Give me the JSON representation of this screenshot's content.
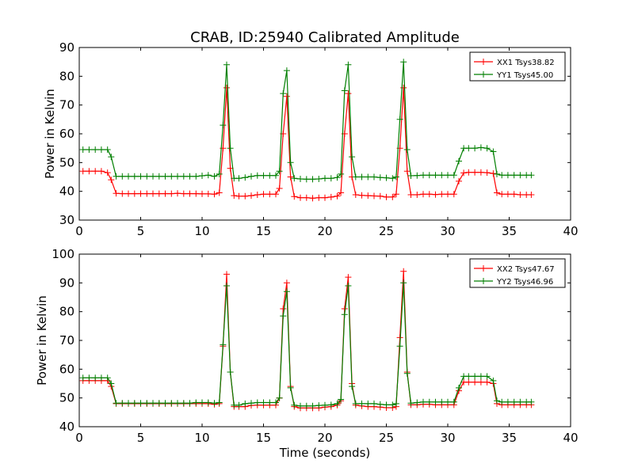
{
  "chart_data": [
    {
      "type": "line",
      "title": "CRAB, ID:25940 Calibrated Amplitude",
      "xlabel": "",
      "ylabel": "Power in Kelvin",
      "xlim": [
        0,
        40
      ],
      "ylim": [
        30,
        90
      ],
      "xticks": [
        "0",
        "5",
        "10",
        "15",
        "20",
        "25",
        "30",
        "35",
        "40"
      ],
      "yticks": [
        "30",
        "40",
        "50",
        "60",
        "70",
        "80",
        "90"
      ],
      "legend_position": "top-right",
      "series": [
        {
          "name": "XX1 Tsys38.82",
          "color": "#ff0000",
          "x": [
            0.3,
            0.8,
            1.3,
            1.8,
            2.3,
            2.6,
            3.0,
            3.5,
            4.0,
            4.5,
            5.0,
            5.5,
            6.0,
            6.5,
            7.0,
            7.5,
            8.0,
            8.5,
            9.0,
            9.5,
            10.0,
            10.5,
            11.0,
            11.4,
            11.7,
            12.0,
            12.3,
            12.6,
            13.0,
            13.5,
            14.0,
            14.5,
            15.0,
            15.5,
            16.0,
            16.3,
            16.6,
            16.9,
            17.2,
            17.5,
            18.0,
            18.5,
            19.0,
            19.5,
            20.0,
            20.5,
            21.0,
            21.3,
            21.6,
            21.9,
            22.2,
            22.5,
            23.0,
            23.5,
            24.0,
            24.5,
            25.0,
            25.5,
            25.8,
            26.1,
            26.4,
            26.7,
            27.0,
            27.5,
            28.0,
            28.5,
            29.0,
            29.5,
            30.0,
            30.5,
            30.9,
            31.3,
            31.7,
            32.2,
            32.7,
            33.2,
            33.7,
            34.0,
            34.4,
            34.9,
            35.4,
            35.9,
            36.4,
            36.8
          ],
          "y": [
            47,
            47,
            47,
            47,
            46.5,
            44,
            39.3,
            39.2,
            39.2,
            39.2,
            39.2,
            39.2,
            39.2,
            39.2,
            39.2,
            39.2,
            39.3,
            39.2,
            39.2,
            39.2,
            39.1,
            39.1,
            39,
            39.5,
            55,
            76,
            48,
            38.5,
            38.3,
            38.3,
            38.5,
            38.8,
            39,
            39,
            39,
            41,
            60,
            73,
            45,
            38.2,
            37.8,
            37.8,
            37.6,
            37.8,
            37.8,
            38,
            38.3,
            39.5,
            60,
            74,
            45,
            38.8,
            38.6,
            38.5,
            38.4,
            38.3,
            38,
            38,
            39,
            55,
            76,
            47,
            38.8,
            38.8,
            39,
            39,
            38.9,
            39,
            39,
            39,
            43.5,
            46.4,
            46.6,
            46.6,
            46.6,
            46.5,
            46.2,
            39.5,
            39,
            39,
            39,
            38.8,
            38.8,
            38.8
          ]
        },
        {
          "name": "YY1 Tsys45.00",
          "color": "#007f00",
          "x": [
            0.3,
            0.8,
            1.3,
            1.8,
            2.3,
            2.6,
            3.0,
            3.5,
            4.0,
            4.5,
            5.0,
            5.5,
            6.0,
            6.5,
            7.0,
            7.5,
            8.0,
            8.5,
            9.0,
            9.5,
            10.0,
            10.5,
            11.0,
            11.4,
            11.7,
            12.0,
            12.3,
            12.6,
            13.0,
            13.5,
            14.0,
            14.5,
            15.0,
            15.5,
            16.0,
            16.3,
            16.6,
            16.9,
            17.2,
            17.5,
            18.0,
            18.5,
            19.0,
            19.5,
            20.0,
            20.5,
            21.0,
            21.3,
            21.6,
            21.9,
            22.2,
            22.5,
            23.0,
            23.5,
            24.0,
            24.5,
            25.0,
            25.5,
            25.8,
            26.1,
            26.4,
            26.7,
            27.0,
            27.5,
            28.0,
            28.5,
            29.0,
            29.5,
            30.0,
            30.5,
            30.9,
            31.3,
            31.7,
            32.2,
            32.7,
            33.2,
            33.7,
            34.0,
            34.4,
            34.9,
            35.4,
            35.9,
            36.4,
            36.8
          ],
          "y": [
            54.5,
            54.5,
            54.5,
            54.5,
            54.5,
            52,
            45.2,
            45.2,
            45.2,
            45.2,
            45.2,
            45.2,
            45.2,
            45.2,
            45.2,
            45.2,
            45.2,
            45.2,
            45.2,
            45.2,
            45.4,
            45.6,
            45.2,
            46,
            63,
            84,
            55,
            44.5,
            44.5,
            44.8,
            45.2,
            45.5,
            45.5,
            45.5,
            45.5,
            47,
            74,
            82,
            50,
            44.5,
            44.3,
            44.2,
            44.2,
            44.3,
            44.5,
            44.5,
            44.8,
            46,
            75,
            84,
            52,
            45,
            45,
            45,
            45,
            44.8,
            44.7,
            44.5,
            45,
            65,
            85,
            54.5,
            45.4,
            45.5,
            45.6,
            45.6,
            45.6,
            45.6,
            45.6,
            45.6,
            50.5,
            55,
            55,
            55,
            55.2,
            55,
            53.8,
            46,
            45.6,
            45.6,
            45.6,
            45.6,
            45.6,
            45.6
          ]
        }
      ]
    },
    {
      "type": "line",
      "title": "",
      "xlabel": "Time (seconds)",
      "ylabel": "Power in Kelvin",
      "xlim": [
        0,
        40
      ],
      "ylim": [
        40,
        100
      ],
      "xticks": [
        "0",
        "5",
        "10",
        "15",
        "20",
        "25",
        "30",
        "35",
        "40"
      ],
      "yticks": [
        "40",
        "50",
        "60",
        "70",
        "80",
        "90",
        "100"
      ],
      "legend_position": "top-right",
      "series": [
        {
          "name": "XX2 Tsys47.67",
          "color": "#ff0000",
          "x": [
            0.3,
            0.8,
            1.3,
            1.8,
            2.3,
            2.6,
            3.0,
            3.5,
            4.0,
            4.5,
            5.0,
            5.5,
            6.0,
            6.5,
            7.0,
            7.5,
            8.0,
            8.5,
            9.0,
            9.5,
            10.0,
            10.5,
            11.0,
            11.4,
            11.7,
            12.0,
            12.3,
            12.6,
            13.0,
            13.5,
            14.0,
            14.5,
            15.0,
            15.5,
            16.0,
            16.3,
            16.6,
            16.9,
            17.2,
            17.5,
            18.0,
            18.5,
            19.0,
            19.5,
            20.0,
            20.5,
            21.0,
            21.3,
            21.6,
            21.9,
            22.2,
            22.5,
            23.0,
            23.5,
            24.0,
            24.5,
            25.0,
            25.5,
            25.8,
            26.1,
            26.4,
            26.7,
            27.0,
            27.5,
            28.0,
            28.5,
            29.0,
            29.5,
            30.0,
            30.5,
            30.9,
            31.3,
            31.7,
            32.2,
            32.7,
            33.2,
            33.7,
            34.0,
            34.4,
            34.9,
            35.4,
            35.9,
            36.4,
            36.8
          ],
          "y": [
            56,
            56,
            56,
            56,
            56,
            54,
            48,
            48,
            48,
            48,
            48,
            48,
            48,
            48,
            48,
            48,
            48,
            48,
            48,
            48,
            48,
            48,
            47.8,
            48,
            68,
            93,
            59,
            47,
            47,
            47,
            47.4,
            47.5,
            47.5,
            47.5,
            47.5,
            50,
            81,
            90,
            54,
            47,
            46.5,
            46.5,
            46.5,
            46.5,
            46.8,
            47,
            47.5,
            49,
            81,
            92,
            55,
            47.5,
            47.2,
            47,
            47,
            46.8,
            46.6,
            46.6,
            47,
            71,
            94,
            59,
            47.6,
            47.6,
            47.8,
            47.8,
            47.6,
            47.6,
            47.6,
            47.6,
            52.5,
            55.5,
            55.5,
            55.5,
            55.5,
            55.5,
            55,
            48,
            47.6,
            47.6,
            47.6,
            47.6,
            47.6,
            47.6
          ]
        },
        {
          "name": "YY2 Tsys46.96",
          "color": "#007f00",
          "x": [
            0.3,
            0.8,
            1.3,
            1.8,
            2.3,
            2.6,
            3.0,
            3.5,
            4.0,
            4.5,
            5.0,
            5.5,
            6.0,
            6.5,
            7.0,
            7.5,
            8.0,
            8.5,
            9.0,
            9.5,
            10.0,
            10.5,
            11.0,
            11.4,
            11.7,
            12.0,
            12.3,
            12.6,
            13.0,
            13.5,
            14.0,
            14.5,
            15.0,
            15.5,
            16.0,
            16.3,
            16.6,
            16.9,
            17.2,
            17.5,
            18.0,
            18.5,
            19.0,
            19.5,
            20.0,
            20.5,
            21.0,
            21.3,
            21.6,
            21.9,
            22.2,
            22.5,
            23.0,
            23.5,
            24.0,
            24.5,
            25.0,
            25.5,
            25.8,
            26.1,
            26.4,
            26.7,
            27.0,
            27.5,
            28.0,
            28.5,
            29.0,
            29.5,
            30.0,
            30.5,
            30.9,
            31.3,
            31.7,
            32.2,
            32.7,
            33.2,
            33.7,
            34.0,
            34.4,
            34.9,
            35.4,
            35.9,
            36.4,
            36.8
          ],
          "y": [
            57,
            57,
            57,
            57,
            57,
            55,
            48.2,
            48.2,
            48.2,
            48.2,
            48.2,
            48.2,
            48.2,
            48.2,
            48.2,
            48.2,
            48.2,
            48.2,
            48.2,
            48.4,
            48.4,
            48.4,
            48.2,
            48.4,
            68.5,
            89,
            59,
            47.5,
            47.5,
            48,
            48.2,
            48.4,
            48.4,
            48.4,
            48.4,
            50,
            78.5,
            87,
            53.5,
            47.5,
            47.2,
            47.2,
            47.2,
            47.4,
            47.5,
            47.6,
            48,
            49.5,
            79,
            89,
            54,
            48,
            48,
            48,
            48,
            47.8,
            47.6,
            47.6,
            48,
            68,
            90,
            58.5,
            48.2,
            48.4,
            48.6,
            48.6,
            48.6,
            48.6,
            48.6,
            48.6,
            53.5,
            57.5,
            57.5,
            57.5,
            57.5,
            57.5,
            56,
            49,
            48.6,
            48.6,
            48.6,
            48.6,
            48.6,
            48.6
          ]
        }
      ]
    }
  ]
}
